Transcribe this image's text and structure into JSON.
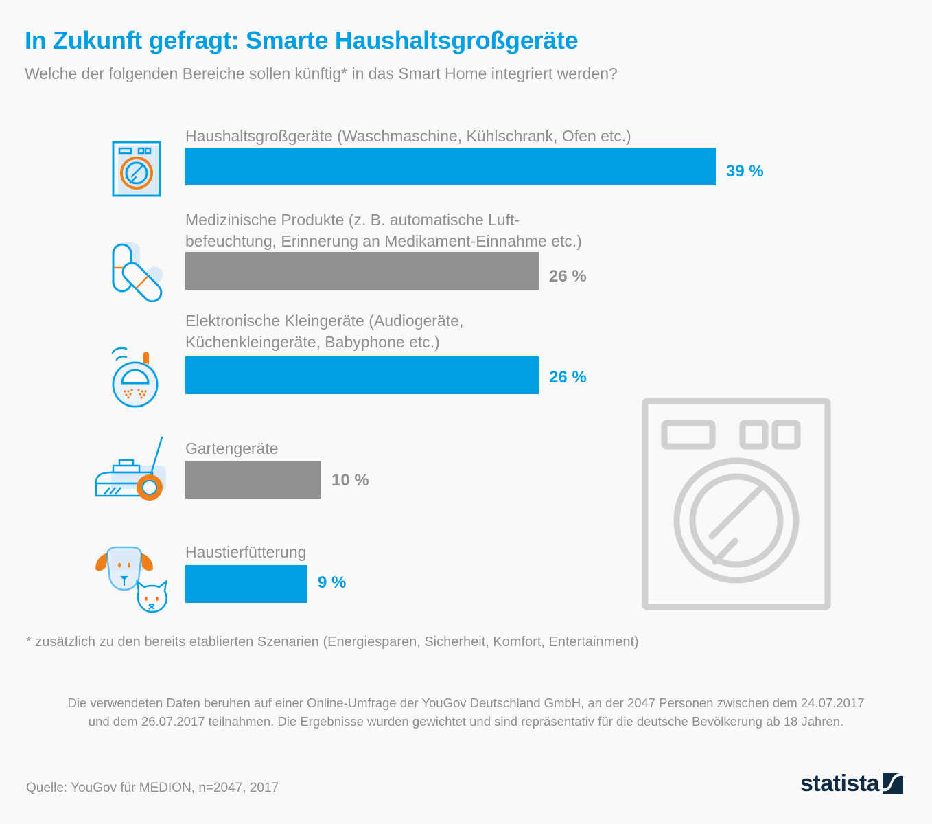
{
  "header": {
    "title": "In Zukunft gefragt: Smarte Haushaltsgroßgeräte",
    "subtitle": "Welche der folgenden Bereiche sollen künftig* in das Smart Home integriert werden?"
  },
  "chart_data": {
    "type": "bar",
    "orientation": "horizontal",
    "title": "In Zukunft gefragt: Smarte Haushaltsgroßgeräte",
    "subtitle": "Welche der folgenden Bereiche sollen künftig* in das Smart Home integriert werden?",
    "xlabel": "",
    "ylabel": "",
    "unit": "%",
    "xlim": [
      0,
      39
    ],
    "categories": [
      [
        "Haushaltsgroßgeräte (Waschmaschine, Kühlschrank, Ofen etc.)"
      ],
      [
        "Medizinische Produkte (z. B. automatische Luft-",
        "befeuchtung, Erinnerung an Medikament-Einnahme etc.)"
      ],
      [
        "Elektronische Kleingeräte (Audiogeräte,",
        "Küchenkleingeräte, Babyphone etc.)"
      ],
      [
        "Gartengeräte"
      ],
      [
        "Haustierfütterung"
      ]
    ],
    "values": [
      39,
      26,
      26,
      10,
      9
    ],
    "value_labels": [
      "39 %",
      "26 %",
      "26 %",
      "10 %",
      "9 %"
    ],
    "bar_colors": [
      "#009fe3",
      "#8e9092",
      "#009fe3",
      "#8e9092",
      "#009fe3"
    ],
    "icons": [
      "washing-machine-icon",
      "pills-icon",
      "baby-monitor-icon",
      "lawn-mower-icon",
      "dog-cat-icon"
    ],
    "grid": false
  },
  "footnote": "* zusätzlich zu den bereits etablierten Szenarien (Energiesparen, Sicherheit, Komfort, Entertainment)",
  "methodology": [
    "Die verwendeten Daten beruhen auf einer Online-Umfrage der YouGov Deutschland GmbH, an der 2047 Personen zwischen dem 24.07.2017",
    "und dem 26.07.2017 teilnahmen. Die Ergebnisse wurden gewichtet und sind repräsentativ für die deutsche Bevölkerung ab 18 Jahren."
  ],
  "source": "Quelle: YouGov für MEDION, n=2047, 2017",
  "brand": {
    "name": "statista",
    "color": "#0f2a43"
  },
  "colors": {
    "accent": "#009fe3",
    "gray_bar": "#8e9092",
    "text": "#8c8f92",
    "icon_orange": "#f0801c",
    "icon_fill": "#dbeaf6",
    "watermark": "#cfd0d2"
  }
}
